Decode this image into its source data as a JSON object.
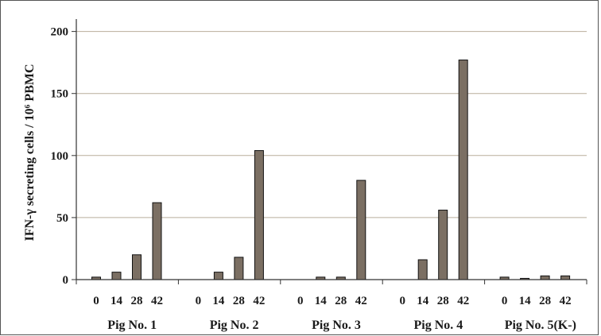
{
  "chart_data": {
    "type": "bar",
    "ylabel": "IFN-γ secreting cells / 10⁶ PBMC",
    "ylim": [
      0,
      210
    ],
    "yticks": [
      0,
      50,
      100,
      150,
      200
    ],
    "grid": true,
    "bar_color": "#7b6f63",
    "groups": [
      {
        "name": "Pig No. 1",
        "categories": [
          "0",
          "14",
          "28",
          "42"
        ],
        "values": [
          2,
          6,
          20,
          62
        ]
      },
      {
        "name": "Pig No. 2",
        "categories": [
          "0",
          "14",
          "28",
          "42"
        ],
        "values": [
          0,
          6,
          18,
          104
        ]
      },
      {
        "name": "Pig No. 3",
        "categories": [
          "0",
          "14",
          "28",
          "42"
        ],
        "values": [
          0,
          2,
          2,
          80
        ]
      },
      {
        "name": "Pig No. 4",
        "categories": [
          "0",
          "14",
          "28",
          "42"
        ],
        "values": [
          0,
          16,
          56,
          177
        ]
      },
      {
        "name": "Pig No. 5(K-)",
        "categories": [
          "0",
          "14",
          "28",
          "42"
        ],
        "values": [
          2,
          1,
          3,
          3
        ]
      }
    ]
  }
}
